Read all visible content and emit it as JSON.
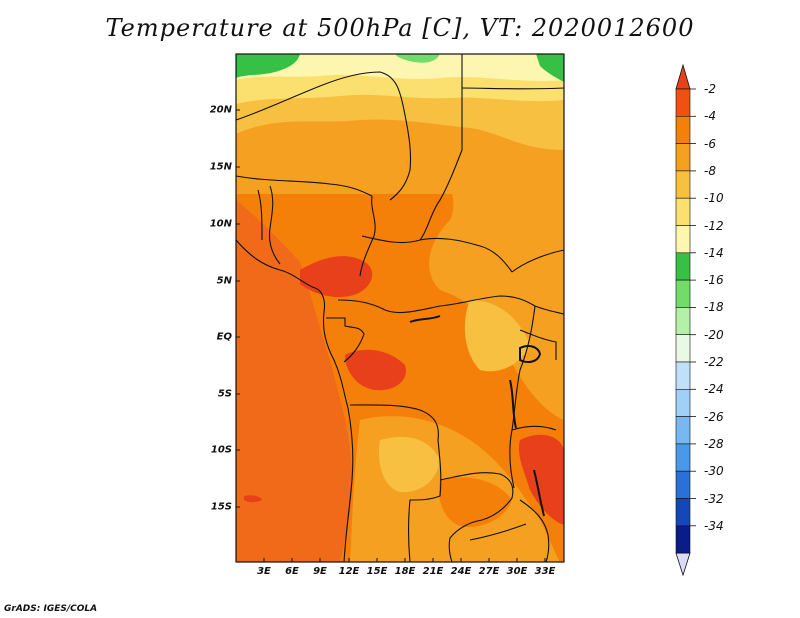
{
  "title": "Temperature at 500hPa [C], VT: 2020012600",
  "credit": "GrADS: IGES/COLA",
  "lon_labels": [
    "3E",
    "6E",
    "9E",
    "12E",
    "15E",
    "18E",
    "21E",
    "24E",
    "27E",
    "30E",
    "33E"
  ],
  "lat_labels": [
    "20N",
    "15N",
    "10N",
    "5N",
    "EQ",
    "5S",
    "10S",
    "15S"
  ],
  "colorbar": {
    "labels": [
      "-2",
      "-4",
      "-6",
      "-8",
      "-10",
      "-12",
      "-14",
      "-16",
      "-18",
      "-20",
      "-22",
      "-24",
      "-26",
      "-28",
      "-30",
      "-32",
      "-34"
    ],
    "colors": [
      "#f05010",
      "#f4800a",
      "#f5a020",
      "#f7c040",
      "#fbe070",
      "#fdf6b0",
      "#36c045",
      "#72dc6a",
      "#b4f0a8",
      "#e8fae6",
      "#c0e0fa",
      "#a0d0f8",
      "#78b8f0",
      "#4a98ea",
      "#2a70d8",
      "#1448b8",
      "#0a1c88"
    ],
    "top_arrow_color": "#e8401a",
    "bottom_arrow_color": "#dcdcfa"
  },
  "map_colors": {
    "ocean_warm": "#f06a1a",
    "hot": "#e8401a",
    "warm": "#f4800a",
    "mid": "#f5a020",
    "cool": "#f7c040",
    "pale": "#fbe070",
    "palest": "#fdf6b0",
    "green": "#36c045",
    "lightgreen": "#72dc6a"
  }
}
